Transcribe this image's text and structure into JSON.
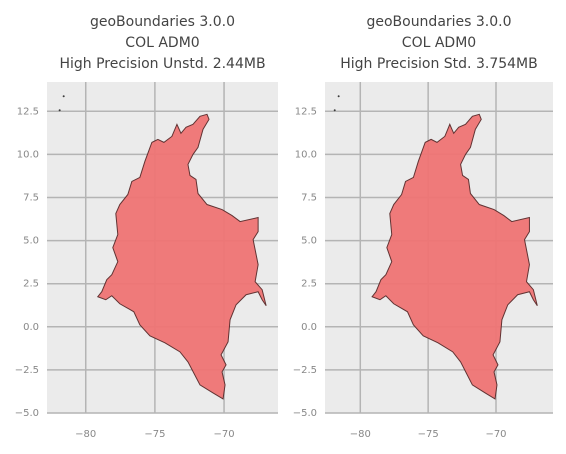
{
  "chart_data": [
    {
      "type": "map",
      "title": [
        "geoBoundaries 3.0.0",
        "COL ADM0",
        "High Precision Unstd. 2.44MB"
      ],
      "color": "#f07474",
      "grid": true,
      "xlim": [
        -82.8,
        -66.1
      ],
      "ylim": [
        -5,
        14.2
      ],
      "xticks": [
        {
          "value": -80,
          "label": "−80"
        },
        {
          "value": -75,
          "label": "−75"
        },
        {
          "value": -70,
          "label": "−70"
        }
      ],
      "yticks": [
        {
          "value": -5,
          "label": "−5.0"
        },
        {
          "value": -2.5,
          "label": "−2.5"
        },
        {
          "value": 0,
          "label": "0.0"
        },
        2.5,
        {
          "value": 5,
          "label": "5.0"
        },
        7.5,
        {
          "value": 10,
          "label": "10.0"
        },
        12.5
      ]
    },
    {
      "type": "map",
      "title": [
        "geoBoundaries 3.0.0",
        "COL ADM0",
        "High Precision Std. 3.754MB"
      ],
      "color": "#f07474",
      "grid": true,
      "xlim": [
        -82.6,
        -65.8
      ],
      "ylim": [
        -5,
        14.2
      ],
      "xticks": [
        {
          "value": -80,
          "label": "−80"
        },
        {
          "value": -75,
          "label": "−75"
        },
        {
          "value": -70,
          "label": "−70"
        }
      ],
      "yticks": [
        {
          "value": -5,
          "label": "−5.0"
        },
        {
          "value": -2.5,
          "label": "−2.5"
        },
        {
          "value": 0,
          "label": "0.0"
        },
        2.5,
        {
          "value": 5,
          "label": "5.0"
        },
        7.5,
        {
          "value": 10,
          "label": "10.0"
        },
        12.5
      ]
    }
  ]
}
